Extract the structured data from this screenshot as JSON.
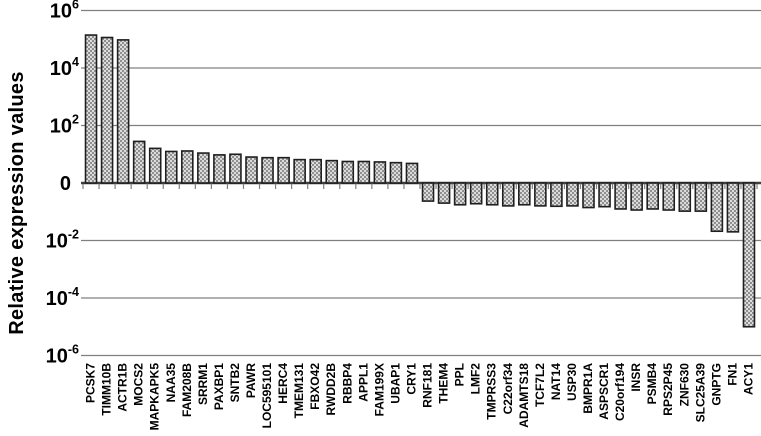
{
  "chart_data": {
    "type": "bar",
    "title": "",
    "ylabel": "Relative expression values",
    "xlabel": "",
    "scale": "symmetric-log",
    "grid": true,
    "legend": "none",
    "ylim_exponents": [
      -6,
      6
    ],
    "yticks": [
      {
        "base": "10",
        "sup": "6",
        "exp": 6
      },
      {
        "base": "10",
        "sup": "4",
        "exp": 4
      },
      {
        "base": "10",
        "sup": "2",
        "exp": 2
      },
      {
        "base": "0",
        "sup": "",
        "exp": 0
      },
      {
        "base": "10",
        "sup": "-2",
        "exp": -2
      },
      {
        "base": "10",
        "sup": "-4",
        "exp": -4
      },
      {
        "base": "10",
        "sup": "-6",
        "exp": -6
      }
    ],
    "categories": [
      "PCSK7",
      "TIMM10B",
      "ACTR1B",
      "MOCS2",
      "MAPKAPK5",
      "NAA35",
      "FAM208B",
      "SRRM1",
      "PAXBP1",
      "SNTB2",
      "PAWR",
      "LOC595101",
      "HERC4",
      "TMEM131",
      "FBXO42",
      "RWDD2B",
      "RBBP4",
      "APPL1",
      "FAM199X",
      "UBAP1",
      "CRY1",
      "RNF181",
      "THEM4",
      "PPL",
      "LMF2",
      "TMPRSS3",
      "C22orf34",
      "ADAMTS18",
      "TCF7L2",
      "NAT14",
      "USP30",
      "BMPR1A",
      "ASPSCR1",
      "C20orf194",
      "INSR",
      "PSMB4",
      "RPS2P45",
      "ZNF630",
      "SLC25A39",
      "GNPTG",
      "FN1",
      "ACY1"
    ],
    "values": [
      140000,
      115000,
      95000,
      28,
      16,
      12.5,
      13,
      11,
      9.5,
      10,
      8,
      7.6,
      7.6,
      6.5,
      6.5,
      6,
      5.6,
      5.6,
      5.4,
      5.1,
      4.8,
      0.235,
      0.2,
      0.175,
      0.19,
      0.175,
      0.16,
      0.175,
      0.16,
      0.155,
      0.16,
      0.14,
      0.15,
      0.125,
      0.115,
      0.125,
      0.115,
      0.105,
      0.105,
      0.021,
      0.02,
      1e-05
    ],
    "colors": {
      "gridline": "#808080",
      "zero_axis": "#3f3f3f",
      "tick": "#808080",
      "bar_fill_light": "#dcdcdc",
      "bar_fill_dot": "#8f8f8f",
      "bar_border": "#1f1f1f",
      "text": "#000000",
      "background": "#ffffff"
    }
  }
}
